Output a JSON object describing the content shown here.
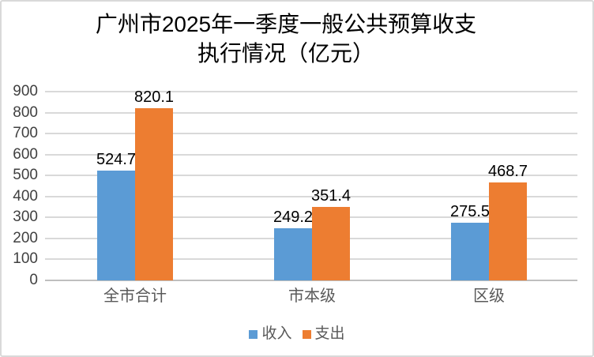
{
  "chart_data": {
    "type": "bar",
    "title": "广州市2025年一季度一般公共预算收支执行情况（亿元）",
    "title_lines": [
      "广州市2025年一季度一般公共预算收支",
      "执行情况（亿元）"
    ],
    "categories": [
      "全市合计",
      "市本级",
      "区级"
    ],
    "series": [
      {
        "name": "收入",
        "color": "#5B9BD5",
        "values": [
          524.7,
          249.2,
          275.5
        ]
      },
      {
        "name": "支出",
        "color": "#ED7D31",
        "values": [
          820.1,
          351.4,
          468.7
        ]
      }
    ],
    "ylim": [
      0,
      900
    ],
    "ytick_step": 100,
    "ytick_labels": [
      "0",
      "100",
      "200",
      "300",
      "400",
      "500",
      "600",
      "700",
      "800",
      "900"
    ],
    "grid": true,
    "legend_position": "bottom",
    "data_labels_shown": true,
    "colors": {
      "gridline": "#D9D9D9",
      "axis_line": "#BFBFBF",
      "axis_text": "#404040",
      "category_text": "#595959",
      "legend_text": "#595959",
      "data_label_text": "#000000",
      "title_text": "#000000",
      "frame_border": "#D9D9D9",
      "background": "#FFFFFF"
    }
  }
}
